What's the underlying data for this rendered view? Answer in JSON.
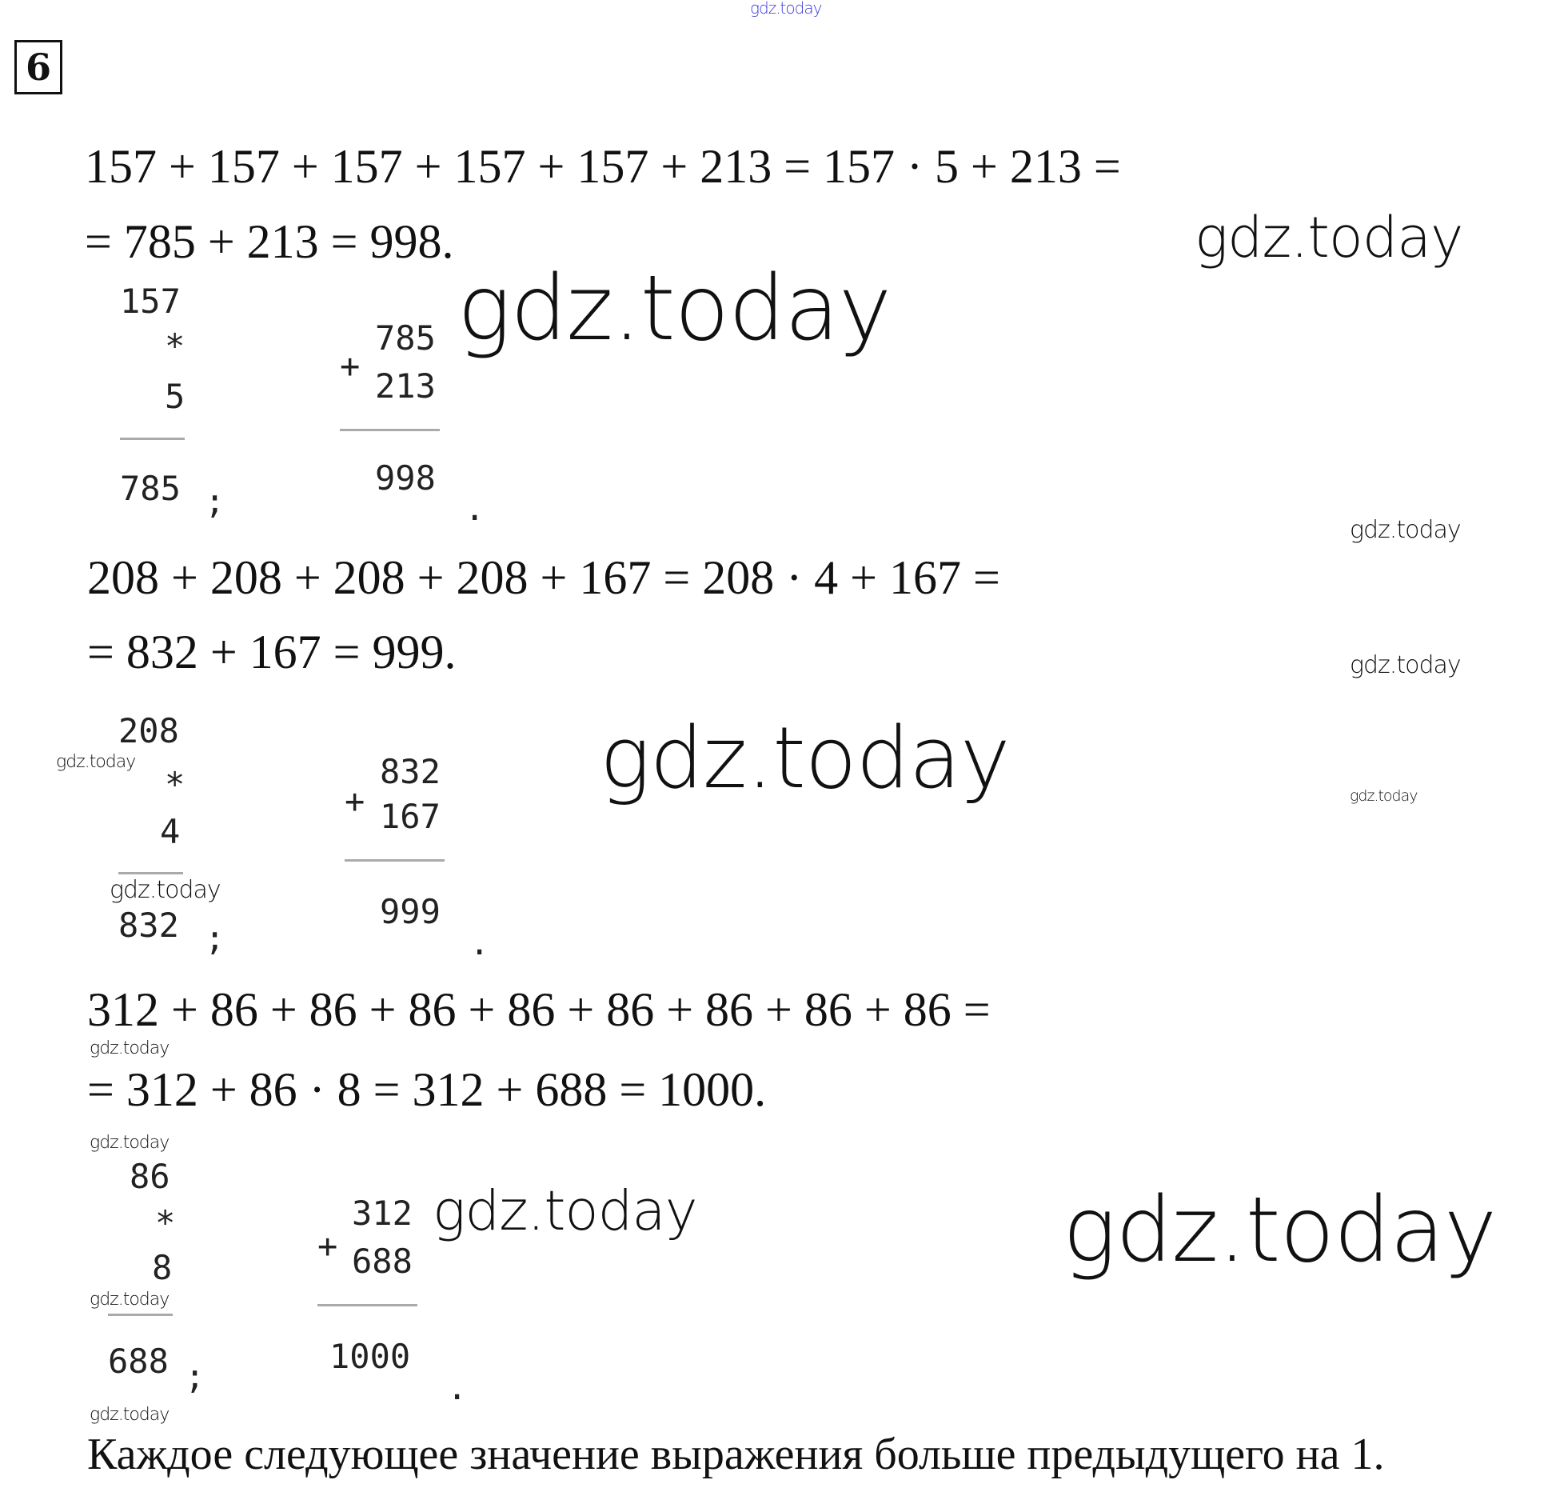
{
  "task_number": "6",
  "watermark": "gdz.today",
  "watermark_top_color": "#3a3adf",
  "equations": [
    "157 + 157 + 157 + 157 + 157 + 213 = 157 · 5 + 213 =",
    "= 785 + 213 = 998.",
    "208 + 208 + 208 + 208 + 167 = 208 · 4 + 167 =",
    "= 832 + 167 = 999.",
    "312 + 86 + 86 + 86 + 86 + 86 + 86 + 86 + 86 =",
    "= 312 + 86 · 8 = 312 + 688 = 1000."
  ],
  "columns": {
    "mul1": {
      "a": "157",
      "op": "*",
      "b": "5",
      "result": "785",
      "end": ";"
    },
    "add1": {
      "a": "785",
      "op": "+",
      "b": "213",
      "result": "998",
      "end": "."
    },
    "mul2": {
      "a": "208",
      "op": "*",
      "b": "4",
      "result": "832",
      "end": ";"
    },
    "add2": {
      "a": "832",
      "op": "+",
      "b": "167",
      "result": "999",
      "end": "."
    },
    "mul3": {
      "a": "86",
      "op": "*",
      "b": "8",
      "result": "688",
      "end": ";"
    },
    "add3": {
      "a": "312",
      "op": "+",
      "b": "688",
      "result": "1000",
      "end": "."
    }
  },
  "conclusion": "Каждое следующее значение выражения больше предыдущего на 1."
}
